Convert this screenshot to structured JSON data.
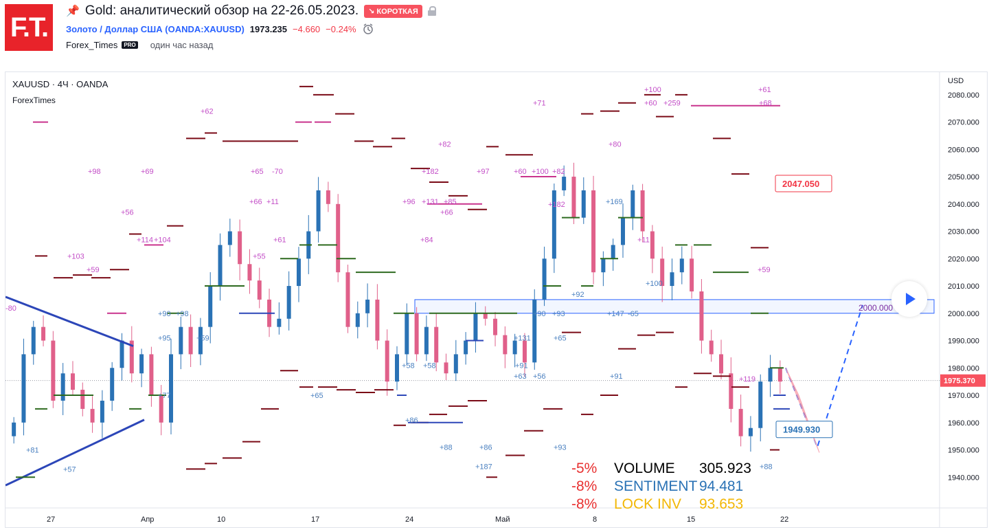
{
  "header": {
    "logo": "F.T.",
    "title": "Gold: аналитический обзор на 22-26.05.2023.",
    "badge": "↘ КОРОТКАЯ",
    "symbol_name": "Золото / Доллар США",
    "symbol_code": "(OANDA:XAUUSD)",
    "price": "1973.235",
    "change": "−4.660",
    "change_pct": "−0.24%",
    "author": "Forex_Times",
    "pro": "PRO",
    "published": "один час назад"
  },
  "chart": {
    "legend": "XAUUSD · 4Ч · OANDA",
    "indicator": "ForexTimes",
    "currency": "USD",
    "y_ticks": [
      "2080.000",
      "2070.000",
      "2060.000",
      "2050.000",
      "2040.000",
      "2030.000",
      "2020.000",
      "2010.000",
      "2000.000",
      "1990.000",
      "1980.000",
      "1970.000",
      "1960.000",
      "1950.000",
      "1940.000"
    ],
    "x_labels": [
      "27",
      "Апр",
      "10",
      "17",
      "24",
      "Май",
      "8",
      "15",
      "22"
    ],
    "current_price": "1975.370",
    "target_labels": {
      "upper": "2047.050",
      "lower": "1949.930",
      "zone": "2000.000"
    },
    "stats": [
      {
        "pct": "-5%",
        "name": "VOLUME",
        "value": "305.923",
        "color": "#000000"
      },
      {
        "pct": "-8%",
        "name": "SENTIMENT",
        "value": "94.481",
        "color": "#2a72b5"
      },
      {
        "pct": "-8%",
        "name": "LOCK INV",
        "value": "93.653",
        "color": "#f2b705"
      }
    ],
    "colors": {
      "up": "#2a72b5",
      "down": "#e0608a",
      "trend": "#2c46b8",
      "level_dark": "#7a0a16",
      "level_green": "#2d6a1f",
      "level_magenta": "#c9338d",
      "label_pink": "#c34ec7",
      "label_blue": "#4a80c0"
    }
  },
  "chart_data": {
    "type": "candlestick",
    "ylim": [
      1930,
      2087
    ],
    "x_labels": [
      "27",
      "Апр",
      "10",
      "17",
      "24",
      "Май",
      "8",
      "15",
      "22"
    ],
    "closes": [
      1960,
      1985,
      1995,
      1990,
      1968,
      1978,
      1972,
      1965,
      1960,
      1968,
      1980,
      1990,
      1978,
      1985,
      1970,
      1960,
      1985,
      1995,
      1985,
      1995,
      2010,
      2025,
      2030,
      2018,
      2012,
      2005,
      1995,
      1998,
      2010,
      2020,
      2030,
      2045,
      2040,
      2015,
      1995,
      2000,
      2005,
      1990,
      1975,
      1985,
      2000,
      1985,
      1995,
      1982,
      1978,
      1985,
      1990,
      2000,
      1998,
      1992,
      1985,
      1990,
      1982,
      2005,
      2020,
      2045,
      2050,
      2035,
      2045,
      2015,
      2020,
      2025,
      2035,
      2045,
      2030,
      2020,
      2010,
      2015,
      2020,
      2008,
      1990,
      1985,
      1978,
      1965,
      1955,
      1958,
      1975,
      1980,
      1975
    ],
    "current": 1975.37,
    "zone": [
      2000,
      2005
    ]
  }
}
